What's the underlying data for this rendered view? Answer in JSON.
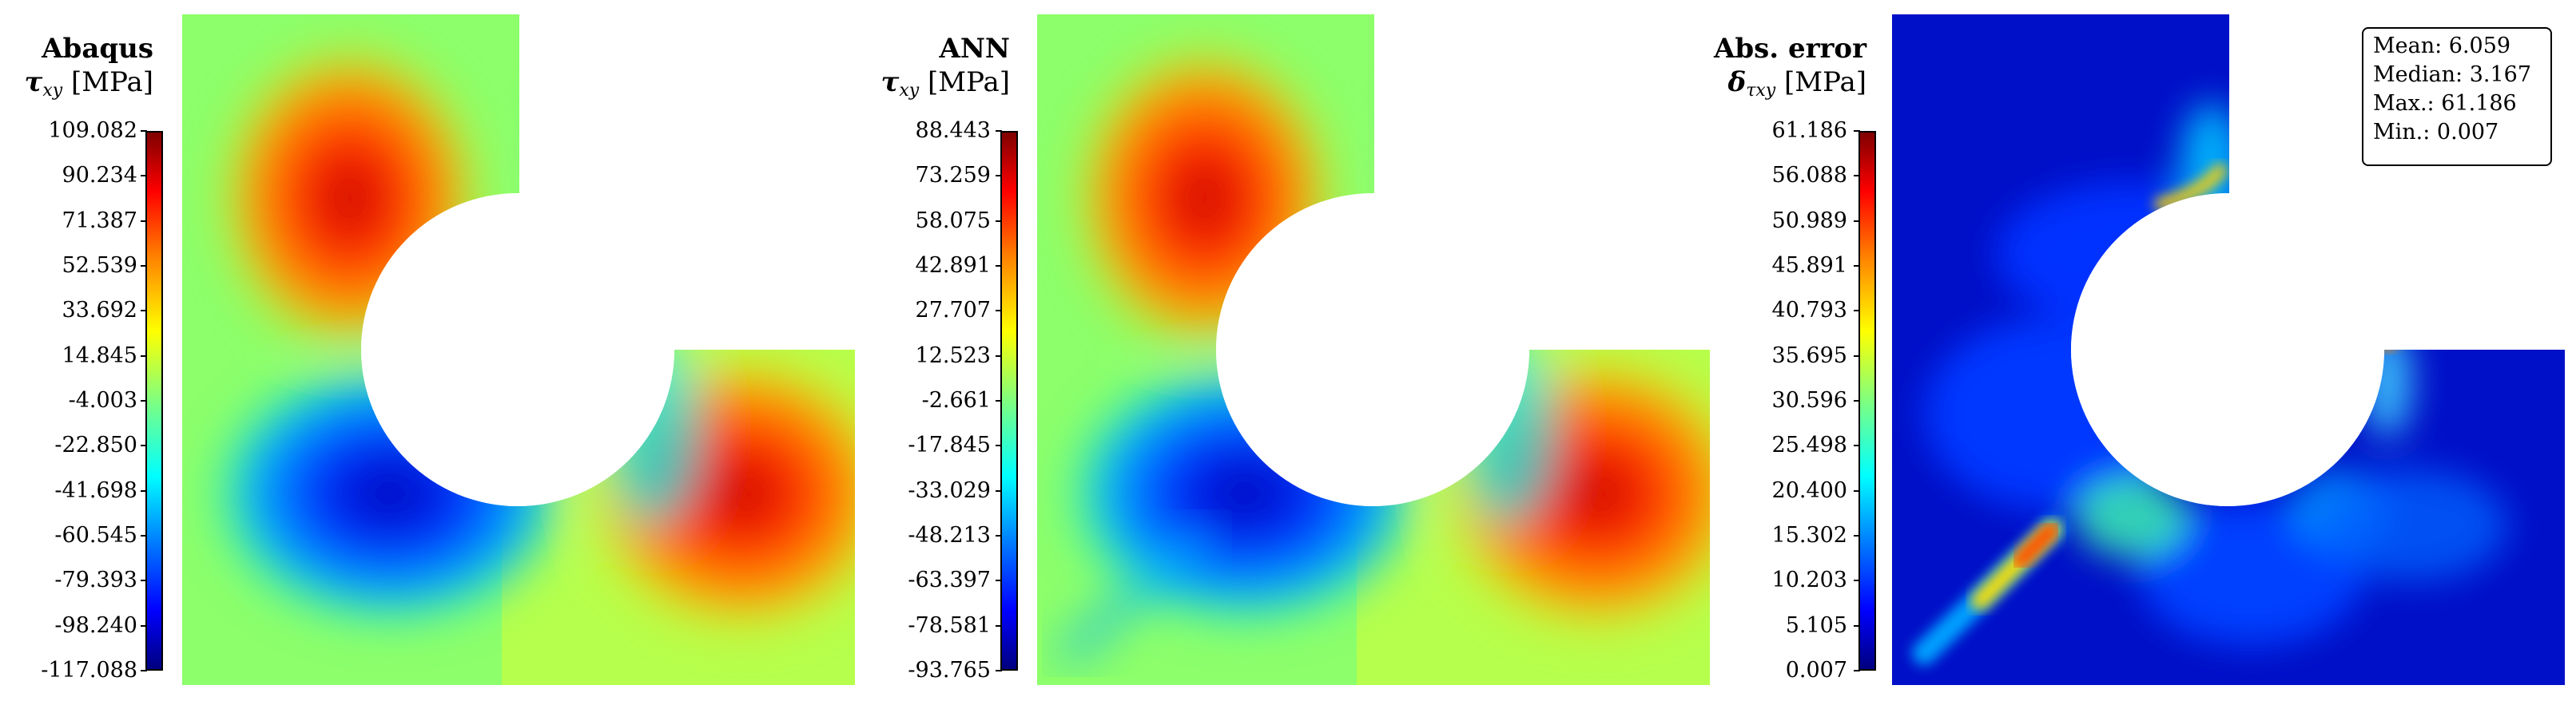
{
  "panels": [
    {
      "title_bold": "Abaqus",
      "symbol": "τ",
      "subscript": "xy",
      "unit": "[MPa]",
      "ticks": [
        "109.082",
        "90.234",
        "71.387",
        "52.539",
        "33.692",
        "14.845",
        "-4.003",
        "-22.850",
        "-41.698",
        "-60.545",
        "-79.393",
        "-98.240",
        "-117.088"
      ]
    },
    {
      "title_bold": "ANN",
      "symbol": "τ",
      "subscript": "xy",
      "unit": "[MPa]",
      "ticks": [
        "88.443",
        "73.259",
        "58.075",
        "42.891",
        "27.707",
        "12.523",
        "-2.661",
        "-17.845",
        "-33.029",
        "-48.213",
        "-63.397",
        "-78.581",
        "-93.765"
      ]
    },
    {
      "title_bold": "Abs. error",
      "symbol": "δ",
      "subscript": "τxy",
      "unit": "[MPa]",
      "ticks": [
        "61.186",
        "56.088",
        "50.989",
        "45.891",
        "40.793",
        "35.695",
        "30.596",
        "25.498",
        "20.400",
        "15.302",
        "10.203",
        "5.105",
        "0.007"
      ]
    }
  ],
  "stats": {
    "mean": "Mean: 6.059",
    "median": "Median: 3.167",
    "max": "Max.: 61.186",
    "min": "Min.: 0.007"
  },
  "chart_data": [
    {
      "type": "heatmap",
      "title": "Abaqus τxy [MPa]",
      "colormap": "jet",
      "range": [
        -117.088,
        109.082
      ]
    },
    {
      "type": "heatmap",
      "title": "ANN τxy [MPa]",
      "colormap": "jet",
      "range": [
        -93.765,
        88.443
      ]
    },
    {
      "type": "heatmap",
      "title": "Abs. error δτxy [MPa]",
      "colormap": "jet",
      "range": [
        0.007,
        61.186
      ],
      "stats": {
        "mean": 6.059,
        "median": 3.167,
        "max": 61.186,
        "min": 0.007
      }
    }
  ]
}
